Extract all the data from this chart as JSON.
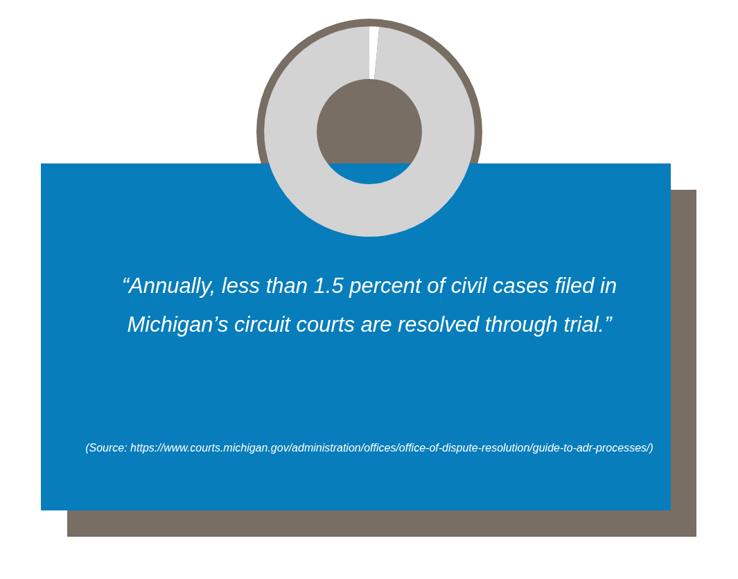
{
  "chart_data": {
    "type": "donut",
    "title": "“Annually, less than 1.5 percent of civil cases filed in Michigan’s circuit courts are resolved through trial.”",
    "categories": [
      null,
      null
    ],
    "values": [
      1.5,
      98.5
    ],
    "colors": [
      "#ffffff",
      "#d3d3d3"
    ],
    "annotations": [
      "(Source: https://www.courts.michigan.gov/administration/offices/office-of-dispute-resolution/guide-to-adr-processes/)"
    ],
    "legend": false
  }
}
